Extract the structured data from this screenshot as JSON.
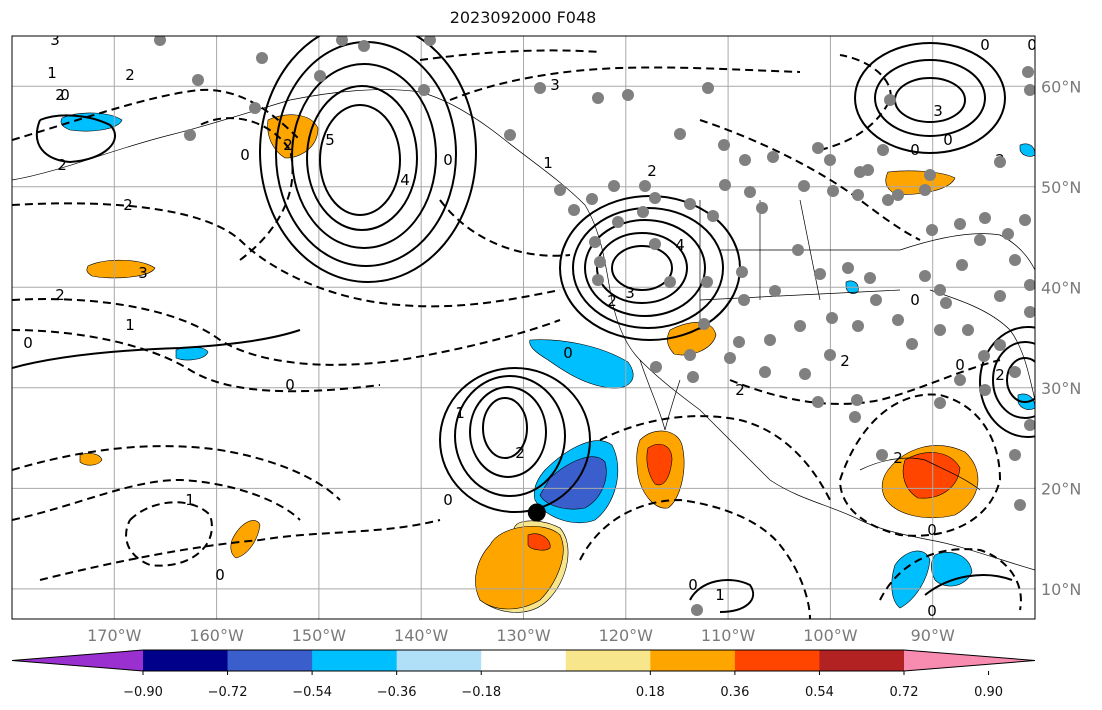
{
  "title": "2023092000 F048",
  "map": {
    "projection": "equirectangular",
    "lon_range": [
      -180,
      -80
    ],
    "lat_range": [
      7,
      65
    ],
    "lon_ticks": [
      {
        "value": -170,
        "label": "170°W"
      },
      {
        "value": -160,
        "label": "160°W"
      },
      {
        "value": -150,
        "label": "150°W"
      },
      {
        "value": -140,
        "label": "140°W"
      },
      {
        "value": -130,
        "label": "130°W"
      },
      {
        "value": -120,
        "label": "120°W"
      },
      {
        "value": -110,
        "label": "110°W"
      },
      {
        "value": -100,
        "label": "100°W"
      },
      {
        "value": -90,
        "label": "90°W"
      }
    ],
    "lat_ticks": [
      {
        "value": 60,
        "label": "60°N"
      },
      {
        "value": 50,
        "label": "50°N"
      },
      {
        "value": 40,
        "label": "40°N"
      },
      {
        "value": 30,
        "label": "30°N"
      },
      {
        "value": 20,
        "label": "20°N"
      },
      {
        "value": 10,
        "label": "10°N"
      }
    ],
    "grid": true,
    "storm_marker": {
      "lon": -128.7,
      "lat": 17.6,
      "color": "#000000"
    },
    "station_color": "#808080"
  },
  "colorbar": {
    "colors": [
      "#9b30d0",
      "#00008b",
      "#3a5fcd",
      "#00bfff",
      "#b0e0f8",
      "#ffffff",
      "#f8e68c",
      "#ffa500",
      "#ff4500",
      "#b22222",
      "#f78bb0"
    ],
    "tick_labels": [
      "−0.90",
      "−0.72",
      "−0.54",
      "−0.36",
      "−0.18",
      "0.18",
      "0.36",
      "0.54",
      "0.72",
      "0.90"
    ],
    "extend": "both"
  }
}
